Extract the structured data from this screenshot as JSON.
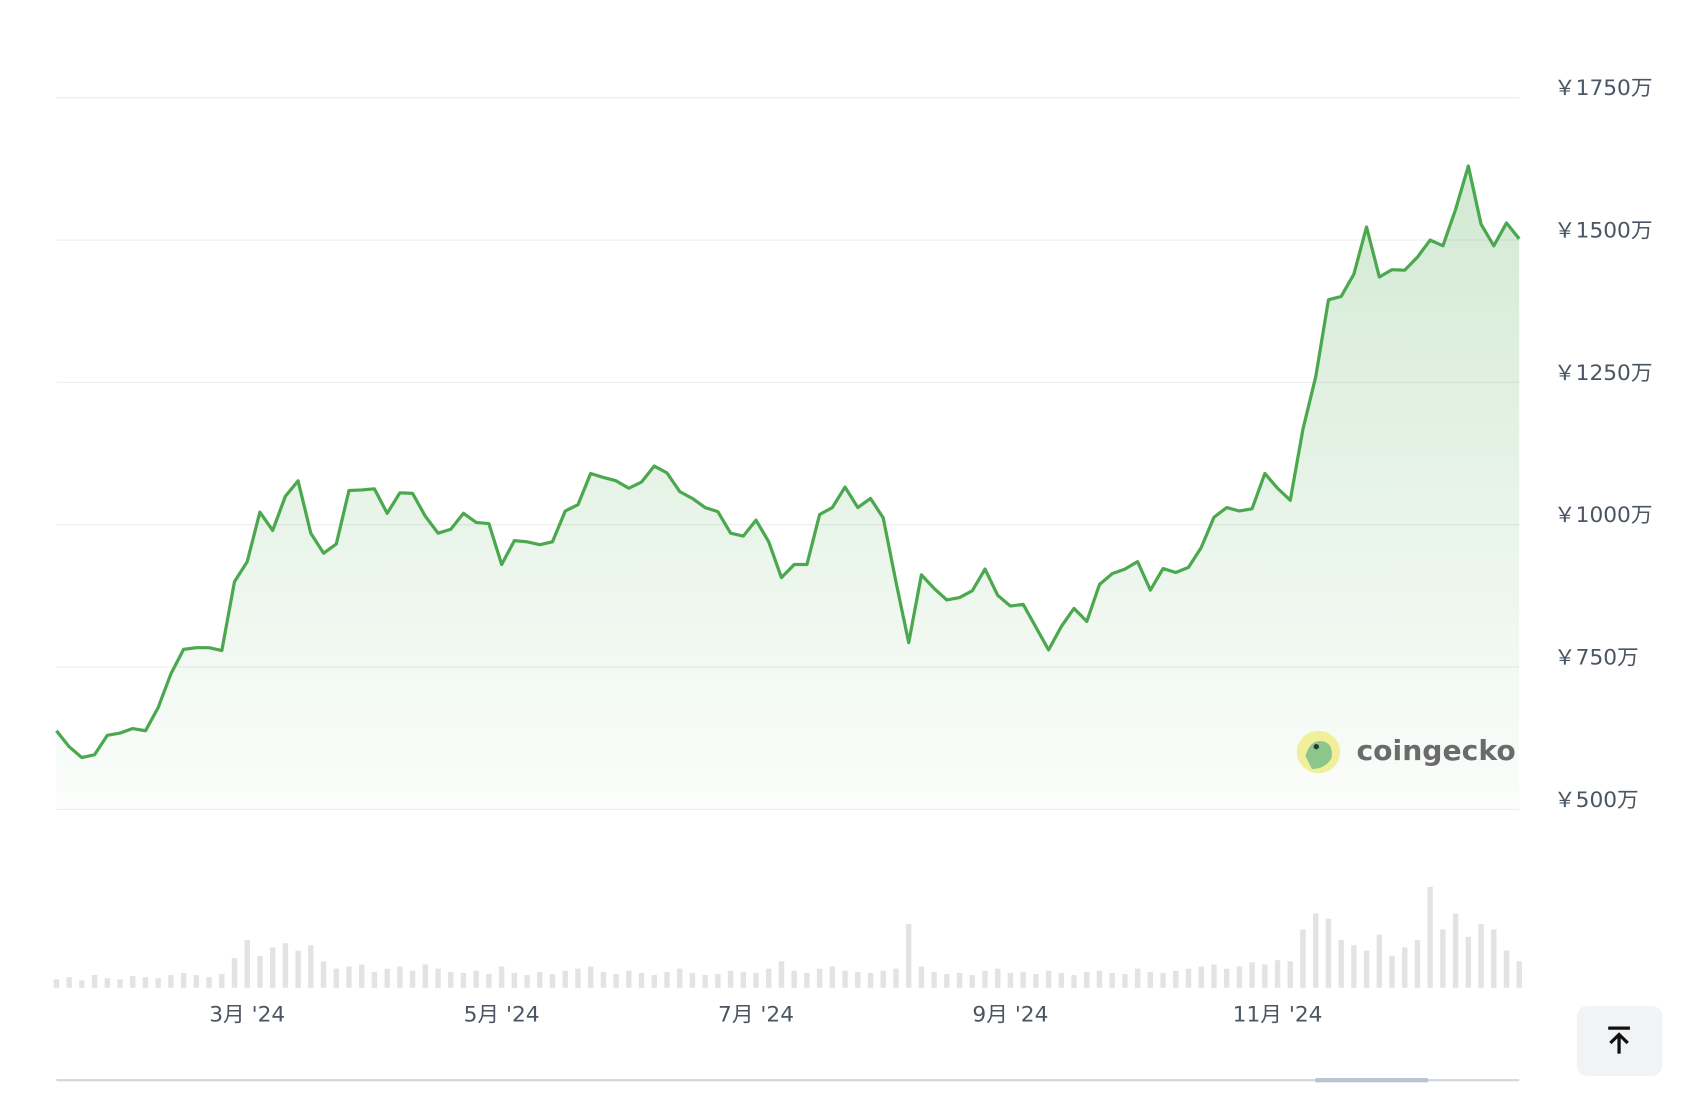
{
  "chart_data": {
    "type": "line",
    "color": "#4ba84f",
    "volume_color": "#e3e3e3",
    "watermark": "coingecko",
    "categories": [
      null,
      null,
      null,
      null,
      null,
      null,
      null,
      null,
      null,
      null,
      null,
      null,
      null,
      null,
      null,
      "3月 '24",
      null,
      null,
      null,
      null,
      null,
      null,
      null,
      null,
      null,
      null,
      null,
      null,
      null,
      null,
      null,
      null,
      null,
      null,
      null,
      "5月 '24",
      null,
      null,
      null,
      null,
      null,
      null,
      null,
      null,
      null,
      null,
      null,
      null,
      null,
      null,
      null,
      null,
      null,
      null,
      null,
      "7月 '24",
      null,
      null,
      null,
      null,
      null,
      null,
      null,
      null,
      null,
      null,
      null,
      null,
      null,
      null,
      null,
      null,
      null,
      null,
      null,
      "9月 '24",
      null,
      null,
      null,
      null,
      null,
      null,
      null,
      null,
      null,
      null,
      null,
      null,
      null,
      null,
      null,
      null,
      null,
      null,
      null,
      null,
      "11月 '24",
      null,
      null,
      null,
      null,
      null,
      null,
      null,
      null,
      null,
      null,
      null,
      null,
      null,
      null,
      null,
      null,
      null,
      null,
      null
    ],
    "values": [
      638,
      610,
      591,
      596,
      630,
      634,
      642,
      638,
      679,
      738,
      781,
      784,
      784,
      779,
      900,
      935,
      1022,
      990,
      1050,
      1077,
      985,
      950,
      966,
      1060,
      1061,
      1063,
      1020,
      1056,
      1055,
      1015,
      985,
      992,
      1020,
      1004,
      1002,
      930,
      972,
      970,
      965,
      970,
      1024,
      1035,
      1090,
      1083,
      1077,
      1064,
      1075,
      1103,
      1091,
      1058,
      1046,
      1030,
      1023,
      985,
      980,
      1008,
      970,
      907,
      930,
      930,
      1018,
      1030,
      1066,
      1030,
      1046,
      1012,
      900,
      793,
      912,
      888,
      868,
      872,
      884,
      922,
      876,
      857,
      860,
      820,
      780,
      821,
      853,
      830,
      895,
      914,
      922,
      935,
      885,
      923,
      916,
      925,
      960,
      1013,
      1030,
      1024,
      1028,
      1090,
      1064,
      1043,
      1168,
      1260,
      1395,
      1401,
      1440,
      1523,
      1435,
      1448,
      1447,
      1470,
      1500,
      1490,
      1554,
      1630,
      1528,
      1490,
      1530,
      1502
    ],
    "volume": [
      8,
      10,
      7,
      12,
      9,
      8,
      11,
      10,
      9,
      12,
      14,
      12,
      10,
      13,
      28,
      45,
      30,
      38,
      42,
      35,
      40,
      25,
      18,
      20,
      22,
      15,
      18,
      20,
      16,
      22,
      18,
      15,
      14,
      16,
      13,
      20,
      14,
      12,
      15,
      13,
      16,
      18,
      20,
      15,
      13,
      16,
      14,
      12,
      15,
      18,
      14,
      12,
      13,
      16,
      15,
      14,
      18,
      25,
      16,
      14,
      18,
      20,
      16,
      15,
      14,
      16,
      18,
      60,
      20,
      15,
      13,
      14,
      12,
      16,
      18,
      14,
      15,
      13,
      16,
      14,
      12,
      15,
      16,
      14,
      13,
      18,
      15,
      14,
      16,
      18,
      20,
      22,
      18,
      20,
      24,
      22,
      26,
      25,
      55,
      70,
      65,
      45,
      40,
      35,
      50,
      30,
      38,
      45,
      95,
      55,
      70,
      48,
      60,
      55,
      35,
      25
    ],
    "ylim": [
      500,
      1750
    ],
    "yticks": [
      {
        "value": 500,
        "label": "￥500万"
      },
      {
        "value": 750,
        "label": "￥750万"
      },
      {
        "value": 1000,
        "label": "￥1000万"
      },
      {
        "value": 1250,
        "label": "￥1250万"
      },
      {
        "value": 1500,
        "label": "￥1500万"
      },
      {
        "value": 1750,
        "label": "￥1750万"
      }
    ],
    "y2lim": [
      0,
      100
    ],
    "grid": true
  }
}
